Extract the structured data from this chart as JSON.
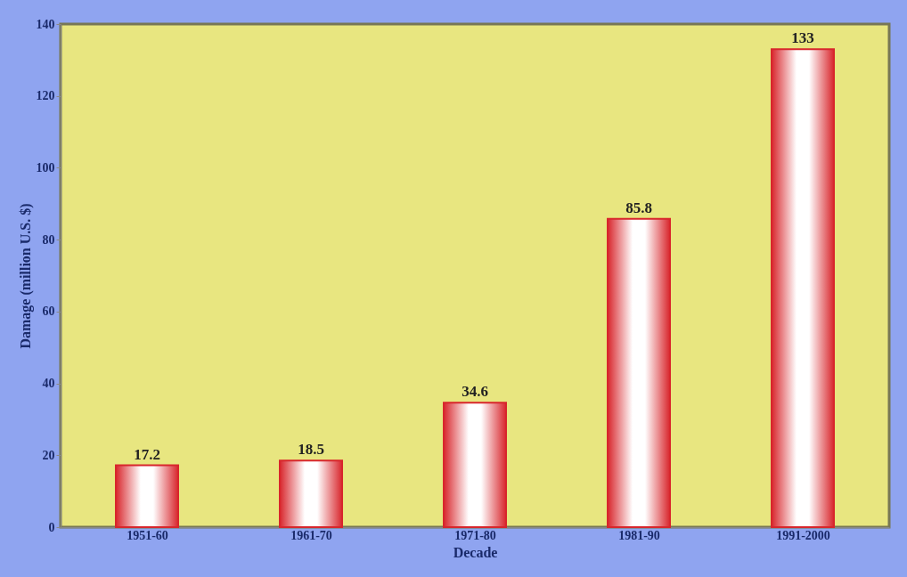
{
  "chart_data": {
    "type": "bar",
    "xlabel": "Decade",
    "ylabel": "Damage (million U.S. $)",
    "categories": [
      "1951-60",
      "1961-70",
      "1971-80",
      "1981-90",
      "1991-2000"
    ],
    "values": [
      17.2,
      18.5,
      34.6,
      85.8,
      133
    ],
    "color": "#d8262c",
    "ylim": [
      0,
      140
    ],
    "yticks": [
      0,
      20,
      40,
      60,
      80,
      100,
      120,
      140
    ],
    "data_labels": true,
    "grid": false
  }
}
